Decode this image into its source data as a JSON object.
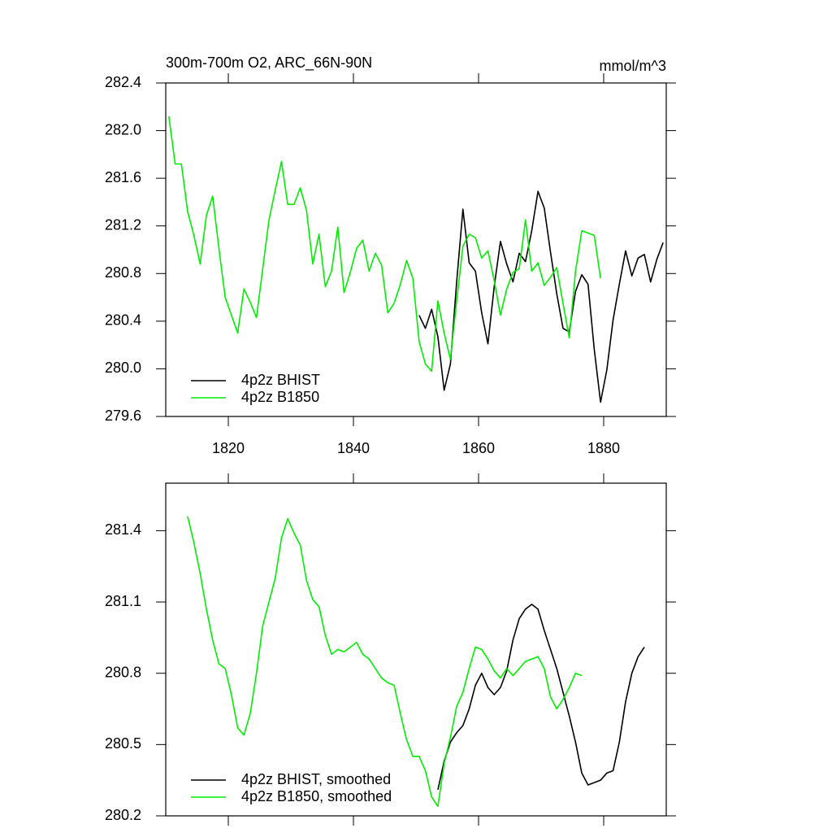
{
  "chart_data": [
    {
      "type": "line",
      "title": "300m-700m O2, ARC_66N-90N",
      "units": "mmol/m^3",
      "xlim": [
        1810,
        1890
      ],
      "xticks": [
        1820,
        1840,
        1860,
        1880
      ],
      "xtick_labels": true,
      "ylim": [
        279.6,
        282.4
      ],
      "yticks": [
        279.6,
        {
          "value": 280,
          "label": "280.0"
        },
        280.4,
        280.8,
        281.2,
        281.6,
        {
          "value": 282,
          "label": "282.0"
        },
        282.4
      ],
      "legend": "lower left",
      "series": [
        {
          "name": "4p2z BHIST",
          "color": "#000000",
          "x": [
            1850.5,
            1851.5,
            1852.5,
            1853.5,
            1854.5,
            1855.5,
            1856.5,
            1857.5,
            1858.5,
            1859.5,
            1860.5,
            1861.5,
            1862.5,
            1863.5,
            1864.5,
            1865.5,
            1866.5,
            1867.5,
            1868.5,
            1869.5,
            1870.5,
            1871.5,
            1872.5,
            1873.5,
            1874.5,
            1875.5,
            1876.5,
            1877.5,
            1878.5,
            1879.5,
            1880.5,
            1881.5,
            1882.5,
            1883.5,
            1884.5,
            1885.5,
            1886.5,
            1887.5,
            1888.5,
            1889.5
          ],
          "values": [
            280.45,
            280.34,
            280.5,
            280.27,
            279.82,
            280.04,
            280.73,
            281.34,
            280.89,
            280.82,
            280.47,
            280.21,
            280.69,
            281.07,
            280.88,
            280.73,
            280.97,
            280.9,
            281.16,
            281.49,
            281.35,
            280.98,
            280.63,
            280.34,
            280.31,
            280.65,
            280.79,
            280.71,
            280.16,
            279.72,
            279.99,
            280.41,
            280.71,
            280.99,
            280.78,
            280.93,
            280.96,
            280.73,
            280.92,
            281.06
          ]
        },
        {
          "name": "4p2z B1850",
          "color": "#00ee00",
          "x": [
            1810.5,
            1811.5,
            1812.5,
            1813.5,
            1814.5,
            1815.5,
            1816.5,
            1817.5,
            1818.5,
            1819.5,
            1820.5,
            1821.5,
            1822.5,
            1823.5,
            1824.5,
            1825.5,
            1826.5,
            1827.5,
            1828.5,
            1829.5,
            1830.5,
            1831.5,
            1832.5,
            1833.5,
            1834.5,
            1835.5,
            1836.5,
            1837.5,
            1838.5,
            1839.5,
            1840.5,
            1841.5,
            1842.5,
            1843.5,
            1844.5,
            1845.5,
            1846.5,
            1847.5,
            1848.5,
            1849.5,
            1850.5,
            1851.5,
            1852.5,
            1853.5,
            1854.5,
            1855.5,
            1856.5,
            1857.5,
            1858.5,
            1859.5,
            1860.5,
            1861.5,
            1862.5,
            1863.5,
            1864.5,
            1865.5,
            1866.5,
            1867.5,
            1868.5,
            1869.5,
            1870.5,
            1871.5,
            1872.5,
            1873.5,
            1874.5,
            1875.5,
            1876.5,
            1877.5,
            1878.5,
            1879.5
          ],
          "values": [
            282.12,
            281.72,
            281.72,
            281.32,
            281.12,
            280.88,
            281.29,
            281.45,
            281.01,
            280.6,
            280.45,
            280.3,
            280.67,
            280.56,
            280.43,
            280.84,
            281.25,
            281.5,
            281.74,
            281.38,
            281.38,
            281.52,
            281.33,
            280.88,
            281.13,
            280.69,
            280.82,
            281.19,
            280.64,
            280.81,
            281.01,
            281.08,
            280.82,
            280.97,
            280.87,
            280.47,
            280.55,
            280.71,
            280.91,
            280.76,
            280.23,
            280.04,
            279.98,
            280.57,
            280.3,
            280.08,
            280.57,
            281.03,
            281.13,
            281.1,
            280.93,
            280.99,
            280.74,
            280.45,
            280.67,
            280.81,
            280.84,
            281.25,
            280.82,
            280.89,
            280.7,
            280.77,
            280.85,
            280.55,
            280.26,
            280.82,
            281.16,
            281.14,
            281.12,
            280.76
          ]
        }
      ]
    },
    {
      "type": "line",
      "xlim": [
        1810,
        1890
      ],
      "xticks": [
        1820,
        1840,
        1860,
        1880
      ],
      "xtick_labels": false,
      "ylim": [
        280.2,
        281.6
      ],
      "yticks": [
        280.2,
        280.5,
        280.8,
        281.1,
        281.4
      ],
      "legend": "lower left",
      "series": [
        {
          "name": "4p2z BHIST, smoothed",
          "color": "#000000",
          "x": [
            1853.5,
            1854.5,
            1855.5,
            1856.5,
            1857.5,
            1858.5,
            1859.5,
            1860.5,
            1861.5,
            1862.5,
            1863.5,
            1864.5,
            1865.5,
            1866.5,
            1867.5,
            1868.5,
            1869.5,
            1870.5,
            1871.5,
            1872.5,
            1873.5,
            1874.5,
            1875.5,
            1876.5,
            1877.5,
            1878.5,
            1879.5,
            1880.5,
            1881.5,
            1882.5,
            1883.5,
            1884.5,
            1885.5,
            1886.5
          ],
          "values": [
            280.31,
            280.43,
            280.51,
            280.55,
            280.58,
            280.65,
            280.75,
            280.8,
            280.74,
            280.71,
            280.74,
            280.81,
            280.94,
            281.03,
            281.07,
            281.09,
            281.07,
            280.98,
            280.9,
            280.82,
            280.72,
            280.62,
            280.51,
            280.38,
            280.33,
            280.34,
            280.35,
            280.38,
            280.39,
            280.51,
            280.68,
            280.8,
            280.87,
            280.91
          ]
        },
        {
          "name": "4p2z B1850, smoothed",
          "color": "#00ee00",
          "x": [
            1813.5,
            1814.5,
            1815.5,
            1816.5,
            1817.5,
            1818.5,
            1819.5,
            1820.5,
            1821.5,
            1822.5,
            1823.5,
            1824.5,
            1825.5,
            1826.5,
            1827.5,
            1828.5,
            1829.5,
            1830.5,
            1831.5,
            1832.5,
            1833.5,
            1834.5,
            1835.5,
            1836.5,
            1837.5,
            1838.5,
            1839.5,
            1840.5,
            1841.5,
            1842.5,
            1843.5,
            1844.5,
            1845.5,
            1846.5,
            1847.5,
            1848.5,
            1849.5,
            1850.5,
            1851.5,
            1852.5,
            1853.5,
            1854.5,
            1855.5,
            1856.5,
            1857.5,
            1858.5,
            1859.5,
            1860.5,
            1861.5,
            1862.5,
            1863.5,
            1864.5,
            1865.5,
            1866.5,
            1867.5,
            1868.5,
            1869.5,
            1870.5,
            1871.5,
            1872.5,
            1873.5,
            1874.5,
            1875.5,
            1876.5
          ],
          "values": [
            281.46,
            281.35,
            281.22,
            281.07,
            280.94,
            280.84,
            280.82,
            280.71,
            280.57,
            280.54,
            280.63,
            280.8,
            281.0,
            281.1,
            281.2,
            281.37,
            281.45,
            281.39,
            281.34,
            281.19,
            281.11,
            281.08,
            280.96,
            280.88,
            280.9,
            280.89,
            280.91,
            280.93,
            280.88,
            280.86,
            280.82,
            280.78,
            280.76,
            280.75,
            280.63,
            280.52,
            280.45,
            280.45,
            280.39,
            280.28,
            280.24,
            280.42,
            280.53,
            280.66,
            280.72,
            280.82,
            280.91,
            280.9,
            280.86,
            280.81,
            280.78,
            280.82,
            280.79,
            280.82,
            280.85,
            280.86,
            280.87,
            280.82,
            280.7,
            280.65,
            280.69,
            280.74,
            280.8,
            280.79
          ]
        }
      ]
    }
  ]
}
